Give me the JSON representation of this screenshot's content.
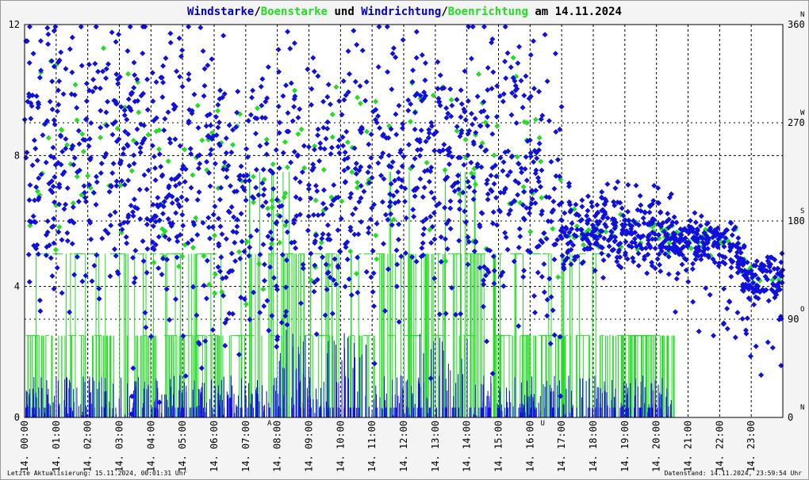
{
  "title": {
    "part1": "Windstarke",
    "sep1": "/",
    "part2": "Boenstarke",
    "part3": " und ",
    "part4": "Windrichtung",
    "sep2": "/",
    "part5": "Boenrichtung",
    "part6": " am 14.11.2024"
  },
  "colors": {
    "wind": "#1010dd",
    "gust": "#22dd22",
    "text": "#000000",
    "axis_title_blue": "#0000cc",
    "marker": "#cc0000"
  },
  "footer": {
    "left": "Letzte Aktualisierung: 15.11.2024, 00:01:31 Uhr",
    "right": "Datenstand: 14.11.2024, 23:59:54 Uhr"
  },
  "chart_data": {
    "type": "scatter",
    "title": "Windstarke/Boenstarke und Windrichtung/Boenrichtung am 14.11.2024",
    "x_range": [
      "14. 00:00",
      "15. 00:00"
    ],
    "x_tick_labels": [
      "14. 00:00",
      "14. 01:00",
      "14. 02:00",
      "14. 03:00",
      "14. 04:00",
      "14. 05:00",
      "14. 06:00",
      "14. 07:00",
      "14. 08:00",
      "14. 09:00",
      "14. 10:00",
      "14. 11:00",
      "14. 12:00",
      "14. 13:00",
      "14. 14:00",
      "14. 15:00",
      "14. 16:00",
      "14. 17:00",
      "14. 18:00",
      "14. 19:00",
      "14. 20:00",
      "14. 21:00",
      "14. 22:00",
      "14. 23:00"
    ],
    "left_axis": {
      "ticks": [
        "0",
        "4",
        "8",
        "12"
      ],
      "range": [
        0,
        12
      ]
    },
    "right_axis": {
      "ticks": [
        "0",
        "90",
        "180",
        "270",
        "360"
      ],
      "range": [
        0,
        360
      ],
      "compass": [
        "N",
        "O",
        "S",
        "W",
        "N"
      ]
    },
    "grid": true,
    "markers": [
      {
        "label": "A",
        "hour": 7.75
      },
      {
        "label": "U",
        "hour": 16.4
      }
    ],
    "series": [
      {
        "name": "Windstarke",
        "kind": "bars",
        "color": "#1010dd",
        "levels": [
          0,
          0.3,
          1.2,
          2.5
        ],
        "note": "mostly 0-1.3 bft spikes, higher bursts 08-09h and 12-14h (max about 2.8)"
      },
      {
        "name": "Boenstarke",
        "kind": "steps",
        "color": "#22dd22",
        "levels": [
          0,
          2.5,
          5,
          7.5
        ],
        "active_until": 20.6
      },
      {
        "name": "Windrichtung",
        "kind": "points",
        "color": "#1010dd",
        "trend_hours": [
          0,
          2,
          4,
          6,
          8,
          10,
          12,
          13,
          14,
          16,
          17,
          18,
          19,
          20,
          21,
          22,
          22.5,
          23,
          24
        ],
        "trend_degrees": [
          240,
          250,
          230,
          210,
          200,
          220,
          230,
          240,
          235,
          230,
          170,
          175,
          170,
          170,
          165,
          160,
          155,
          125,
          130
        ]
      },
      {
        "name": "Boenrichtung",
        "kind": "points",
        "color": "#22dd22"
      }
    ]
  }
}
